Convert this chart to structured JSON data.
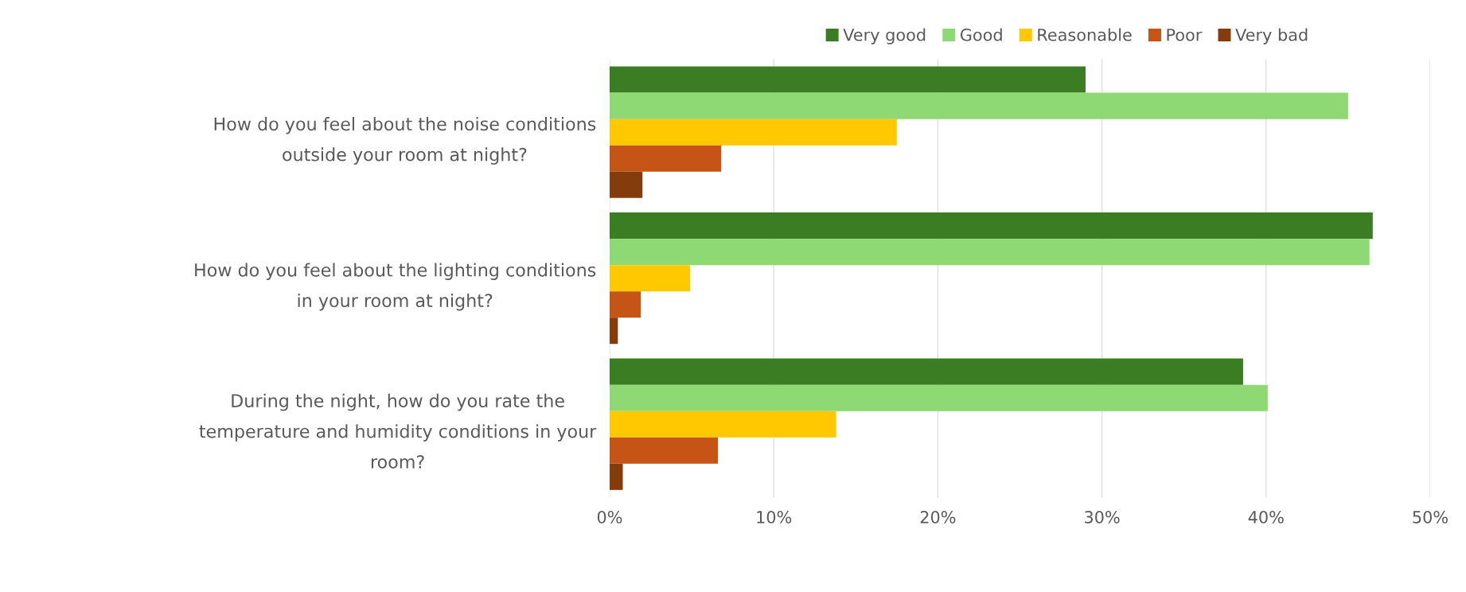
{
  "chart_data": {
    "type": "bar",
    "orientation": "horizontal",
    "categories": [
      "How do you feel about the noise conditions\noutside your room at night?",
      "How do you feel about the lighting conditions\nin your room at night?",
      "During the night, how do you rate the\ntemperature and humidity conditions in your\nroom?"
    ],
    "series": [
      {
        "name": "Very good",
        "color": "#3a7d22",
        "values": [
          29.0,
          46.5,
          38.6
        ]
      },
      {
        "name": "Good",
        "color": "#8ed973",
        "values": [
          45.0,
          46.3,
          40.1
        ]
      },
      {
        "name": "Reasonable",
        "color": "#ffc800",
        "values": [
          17.5,
          4.9,
          13.8
        ]
      },
      {
        "name": "Poor",
        "color": "#c65416",
        "values": [
          6.8,
          1.9,
          6.6
        ]
      },
      {
        "name": "Very bad",
        "color": "#843c0c",
        "values": [
          2.0,
          0.5,
          0.8
        ]
      }
    ],
    "xlim": [
      0,
      50
    ],
    "xticks": [
      {
        "value": 0,
        "label": "0%"
      },
      {
        "value": 10,
        "label": "10%"
      },
      {
        "value": 20,
        "label": "20%"
      },
      {
        "value": 30,
        "label": "30%"
      },
      {
        "value": 40,
        "label": "40%"
      },
      {
        "value": 50,
        "label": "50%"
      }
    ],
    "grid": "x",
    "legend": "top right"
  }
}
